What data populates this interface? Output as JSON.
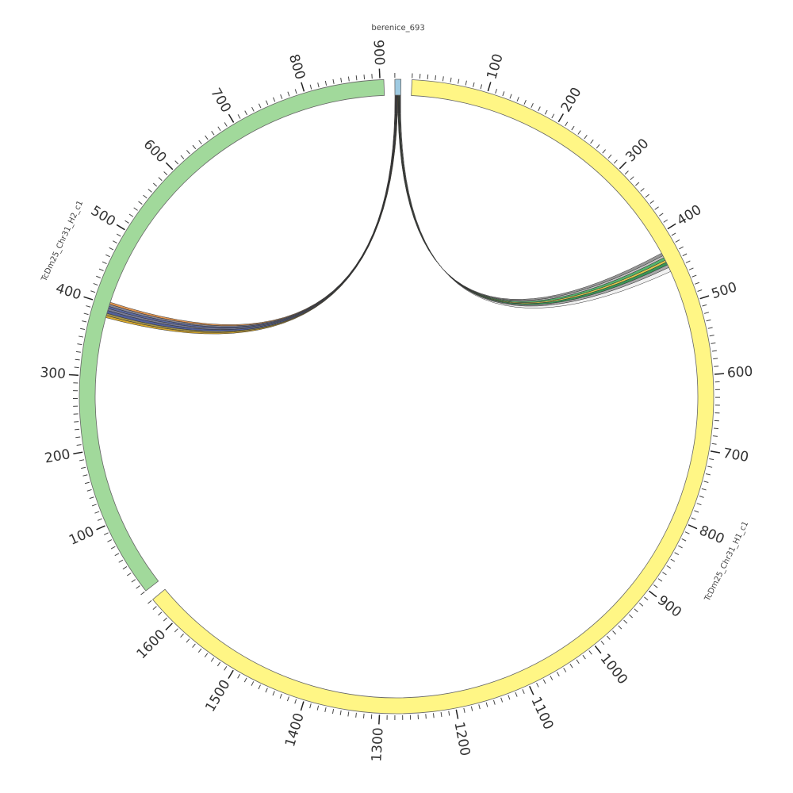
{
  "chart_data": {
    "type": "chord",
    "segments": [
      {
        "name": "berenice_693",
        "length": 8,
        "color": "#9ecae1",
        "ticks": []
      },
      {
        "name": "TcDm25_Chr31_H1_c1",
        "length": 1640,
        "color": "#fff685",
        "ticks": [
          100,
          200,
          300,
          400,
          500,
          600,
          700,
          800,
          900,
          1000,
          1100,
          1200,
          1300,
          1400,
          1500,
          1600
        ]
      },
      {
        "name": "TcDm25_Chr31_H2_c1",
        "length": 905,
        "color": "#a1d99b",
        "ticks": [
          100,
          200,
          300,
          400,
          500,
          600,
          700,
          800,
          900
        ]
      }
    ],
    "minor_tick_interval": 10,
    "links": [
      {
        "source": 0,
        "source_range": [
          4.0,
          4.5
        ],
        "target": 1,
        "target_range": [
          424,
          428
        ],
        "color": "#8c8c8c"
      },
      {
        "source": 0,
        "source_range": [
          4.5,
          5.0
        ],
        "target": 1,
        "target_range": [
          428,
          431
        ],
        "color": "#bdbdbd"
      },
      {
        "source": 0,
        "source_range": [
          5.0,
          5.6
        ],
        "target": 1,
        "target_range": [
          431,
          435
        ],
        "color": "#41ab5d"
      },
      {
        "source": 0,
        "source_range": [
          5.6,
          6.1
        ],
        "target": 1,
        "target_range": [
          435,
          438
        ],
        "color": "#d9c23b"
      },
      {
        "source": 0,
        "source_range": [
          6.1,
          6.7
        ],
        "target": 1,
        "target_range": [
          438,
          442
        ],
        "color": "#238b45"
      },
      {
        "source": 0,
        "source_range": [
          6.7,
          7.2
        ],
        "target": 1,
        "target_range": [
          442,
          446
        ],
        "color": "#a0a0a0"
      },
      {
        "source": 0,
        "source_range": [
          7.2,
          8.0
        ],
        "target": 1,
        "target_range": [
          446,
          452
        ],
        "color": "#f0f0f0"
      },
      {
        "source": 0,
        "source_range": [
          0.0,
          0.6
        ],
        "target": 2,
        "target_range": [
          401,
          404
        ],
        "color": "#e08a3c"
      },
      {
        "source": 0,
        "source_range": [
          0.6,
          1.2
        ],
        "target": 2,
        "target_range": [
          398,
          401
        ],
        "color": "#7a7a8c"
      },
      {
        "source": 0,
        "source_range": [
          1.2,
          1.8
        ],
        "target": 2,
        "target_range": [
          395,
          398
        ],
        "color": "#4a5a9a"
      },
      {
        "source": 0,
        "source_range": [
          1.8,
          2.4
        ],
        "target": 2,
        "target_range": [
          392,
          395
        ],
        "color": "#6b6f8c"
      },
      {
        "source": 0,
        "source_range": [
          2.4,
          3.0
        ],
        "target": 2,
        "target_range": [
          388,
          392
        ],
        "color": "#3f4f8f"
      },
      {
        "source": 0,
        "source_range": [
          3.0,
          3.5
        ],
        "target": 2,
        "target_range": [
          385,
          388
        ],
        "color": "#9a8a3a"
      },
      {
        "source": 0,
        "source_range": [
          3.5,
          4.0
        ],
        "target": 2,
        "target_range": [
          382,
          385
        ],
        "color": "#d4a017"
      }
    ]
  }
}
